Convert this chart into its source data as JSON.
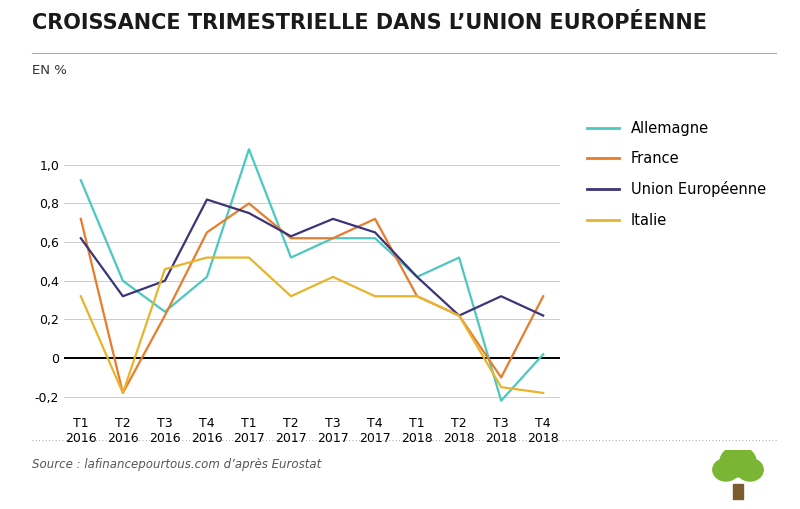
{
  "title": "CROISSANCE TRIMESTRIELLE DANS L’UNION EUROPÉENNE",
  "ylabel": "EN %",
  "source": "Source : lafinancepourtous.com d’après Eurostat",
  "categories": [
    "T1\n2016",
    "T2\n2016",
    "T3\n2016",
    "T4\n2016",
    "T1\n2017",
    "T2\n2017",
    "T3\n2017",
    "T4\n2017",
    "T1\n2018",
    "T2\n2018",
    "T3\n2018",
    "T4\n2018"
  ],
  "Allemagne": [
    0.92,
    0.4,
    0.24,
    0.42,
    1.08,
    0.52,
    0.62,
    0.62,
    0.42,
    0.52,
    -0.22,
    0.02
  ],
  "France": [
    0.72,
    -0.18,
    0.22,
    0.65,
    0.8,
    0.62,
    0.62,
    0.72,
    0.32,
    0.22,
    -0.1,
    0.32
  ],
  "Union Europeenne": [
    0.62,
    0.32,
    0.4,
    0.82,
    0.75,
    0.63,
    0.72,
    0.65,
    0.42,
    0.22,
    0.32,
    0.22
  ],
  "Italie": [
    0.32,
    -0.18,
    0.46,
    0.52,
    0.52,
    0.32,
    0.42,
    0.32,
    0.32,
    0.22,
    -0.15,
    -0.18
  ],
  "colors": {
    "Allemagne": "#4bc8c0",
    "France": "#e87c2b",
    "Union Europeenne": "#3b3478",
    "Italie": "#e8b42b"
  },
  "ylim": [
    -0.28,
    1.22
  ],
  "yticks": [
    -0.2,
    0.0,
    0.2,
    0.4,
    0.6,
    0.8,
    1.0
  ],
  "background_color": "#ffffff",
  "title_fontsize": 15,
  "tick_fontsize": 9,
  "legend_fontsize": 10.5,
  "source_fontsize": 8.5,
  "ylabel_fontsize": 9.5,
  "tree_color": "#7ab534"
}
